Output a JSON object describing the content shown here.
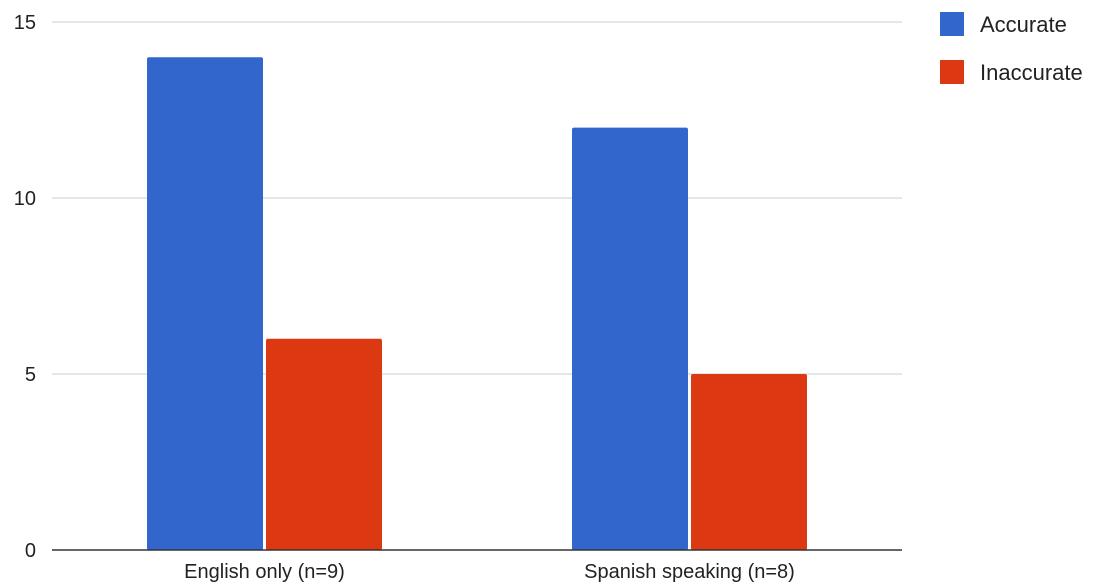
{
  "chart_data": {
    "type": "bar",
    "title": "",
    "xlabel": "",
    "ylabel": "",
    "categories": [
      "English only (n=9)",
      "Spanish speaking (n=8)"
    ],
    "series": [
      {
        "name": "Accurate",
        "color": "#3366cc",
        "values": [
          14,
          12
        ]
      },
      {
        "name": "Inaccurate",
        "color": "#dc3912",
        "values": [
          6,
          5
        ]
      }
    ],
    "ylim": [
      0,
      15
    ],
    "yticks": [
      0,
      5,
      10,
      15
    ],
    "grid": true,
    "legend_position": "top-right"
  }
}
